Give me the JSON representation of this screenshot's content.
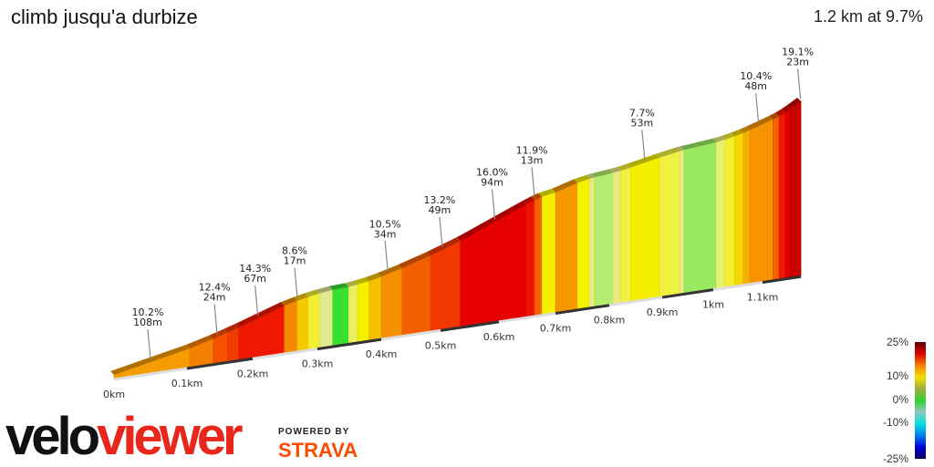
{
  "header": {
    "title": "climb jusqu'a durbize",
    "summary": "1.2 km at 9.7%"
  },
  "chart_data": {
    "type": "area",
    "subtype": "3d-gradient-elevation-profile",
    "title": "climb jusqu'a durbize",
    "total_distance_km": 1.2,
    "avg_grade_pct": 9.7,
    "x_ticks": [
      {
        "km": 0,
        "label": "0km"
      },
      {
        "km": 0.1,
        "label": "0.1km"
      },
      {
        "km": 0.2,
        "label": "0.2km"
      },
      {
        "km": 0.3,
        "label": "0.3km"
      },
      {
        "km": 0.4,
        "label": "0.4km"
      },
      {
        "km": 0.5,
        "label": "0.5km"
      },
      {
        "km": 0.6,
        "label": "0.6km"
      },
      {
        "km": 0.7,
        "label": "0.7km"
      },
      {
        "km": 0.8,
        "label": "0.8km"
      },
      {
        "km": 0.9,
        "label": "0.9km"
      },
      {
        "km": 1.0,
        "label": "1km"
      },
      {
        "km": 1.1,
        "label": "1.1km"
      }
    ],
    "segments": [
      {
        "start": 0,
        "end": 0.104,
        "grade": 10,
        "color": "#f59c00"
      },
      {
        "start": 0.104,
        "end": 0.14,
        "grade": 11.5,
        "color": "#f58000"
      },
      {
        "start": 0.14,
        "end": 0.162,
        "grade": 13,
        "color": "#f45000"
      },
      {
        "start": 0.162,
        "end": 0.179,
        "grade": 13.5,
        "color": "#f03c00"
      },
      {
        "start": 0.179,
        "end": 0.249,
        "grade": 14.5,
        "color": "#f01800"
      },
      {
        "start": 0.249,
        "end": 0.269,
        "grade": 11,
        "color": "#f58a00"
      },
      {
        "start": 0.269,
        "end": 0.286,
        "grade": 9,
        "color": "#f5c800"
      },
      {
        "start": 0.286,
        "end": 0.304,
        "grade": 7,
        "color": "#f0f030"
      },
      {
        "start": 0.304,
        "end": 0.324,
        "grade": 5,
        "color": "#e0e890"
      },
      {
        "start": 0.324,
        "end": 0.349,
        "grade": 2,
        "color": "#38e030"
      },
      {
        "start": 0.349,
        "end": 0.363,
        "grade": 5,
        "color": "#e8f060"
      },
      {
        "start": 0.363,
        "end": 0.381,
        "grade": 6.5,
        "color": "#f4f000"
      },
      {
        "start": 0.381,
        "end": 0.4,
        "grade": 9,
        "color": "#f5c000"
      },
      {
        "start": 0.4,
        "end": 0.435,
        "grade": 10.5,
        "color": "#f59000"
      },
      {
        "start": 0.435,
        "end": 0.483,
        "grade": 12,
        "color": "#f46000"
      },
      {
        "start": 0.483,
        "end": 0.534,
        "grade": 13.5,
        "color": "#f23800"
      },
      {
        "start": 0.534,
        "end": 0.648,
        "grade": 16,
        "color": "#e60000"
      },
      {
        "start": 0.648,
        "end": 0.663,
        "grade": 14.5,
        "color": "#f01000"
      },
      {
        "start": 0.663,
        "end": 0.676,
        "grade": 12,
        "color": "#f46000"
      },
      {
        "start": 0.676,
        "end": 0.7,
        "grade": 6.5,
        "color": "#f4f000"
      },
      {
        "start": 0.7,
        "end": 0.741,
        "grade": 10.5,
        "color": "#f59800"
      },
      {
        "start": 0.741,
        "end": 0.763,
        "grade": 7,
        "color": "#f4f000"
      },
      {
        "start": 0.763,
        "end": 0.773,
        "grade": 5,
        "color": "#e8ec80"
      },
      {
        "start": 0.773,
        "end": 0.807,
        "grade": 3.5,
        "color": "#b4ec70"
      },
      {
        "start": 0.807,
        "end": 0.821,
        "grade": 5,
        "color": "#e8ec80"
      },
      {
        "start": 0.821,
        "end": 0.841,
        "grade": 6,
        "color": "#f0f040"
      },
      {
        "start": 0.841,
        "end": 0.895,
        "grade": 7,
        "color": "#f4ee00"
      },
      {
        "start": 0.895,
        "end": 0.934,
        "grade": 6,
        "color": "#f0f040"
      },
      {
        "start": 0.934,
        "end": 0.943,
        "grade": 5,
        "color": "#e8ec80"
      },
      {
        "start": 0.943,
        "end": 1.006,
        "grade": 3,
        "color": "#98e860"
      },
      {
        "start": 1.006,
        "end": 1.024,
        "grade": 5,
        "color": "#e8f070"
      },
      {
        "start": 1.024,
        "end": 1.043,
        "grade": 6.5,
        "color": "#f4f030"
      },
      {
        "start": 1.043,
        "end": 1.061,
        "grade": 8,
        "color": "#f5d800"
      },
      {
        "start": 1.061,
        "end": 1.074,
        "grade": 9.5,
        "color": "#f5b000"
      },
      {
        "start": 1.074,
        "end": 1.122,
        "grade": 10.5,
        "color": "#f59400"
      },
      {
        "start": 1.122,
        "end": 1.135,
        "grade": 12,
        "color": "#f46000"
      },
      {
        "start": 1.135,
        "end": 1.148,
        "grade": 14.5,
        "color": "#f01800"
      },
      {
        "start": 1.148,
        "end": 1.159,
        "grade": 17,
        "color": "#e00000"
      },
      {
        "start": 1.159,
        "end": 1.181,
        "grade": 19,
        "color": "#c80000"
      }
    ],
    "annotations": [
      {
        "km": 0.05,
        "grade": "10.2%",
        "length": "108m"
      },
      {
        "km": 0.146,
        "grade": "12.4%",
        "length": "24m"
      },
      {
        "km": 0.208,
        "grade": "14.3%",
        "length": "67m"
      },
      {
        "km": 0.269,
        "grade": "8.6%",
        "length": "17m"
      },
      {
        "km": 0.411,
        "grade": "10.5%",
        "length": "34m"
      },
      {
        "km": 0.503,
        "grade": "13.2%",
        "length": "49m"
      },
      {
        "km": 0.593,
        "grade": "16.0%",
        "length": "94m"
      },
      {
        "km": 0.663,
        "grade": "11.9%",
        "length": "13m"
      },
      {
        "km": 0.867,
        "grade": "7.7%",
        "length": "53m"
      },
      {
        "km": 1.092,
        "grade": "10.4%",
        "length": "48m"
      },
      {
        "km": 1.18,
        "grade": "19.1%",
        "length": "23m"
      }
    ],
    "legend": {
      "labels": [
        "25%",
        "10%",
        "0%",
        "-10%",
        "-25%"
      ],
      "values": [
        25,
        10,
        0,
        -10,
        -25
      ],
      "colors": [
        "#600000",
        "#e00000",
        "#f58000",
        "#f0e000",
        "#a0b040",
        "#30d030",
        "#90c8c0",
        "#00e0e0",
        "#0080f0",
        "#0000e0",
        "#000050"
      ]
    }
  },
  "branding": {
    "logo_part1": "velo",
    "logo_part2": "viewer",
    "powered_by": "POWERED BY",
    "strava": "STRAVA"
  }
}
